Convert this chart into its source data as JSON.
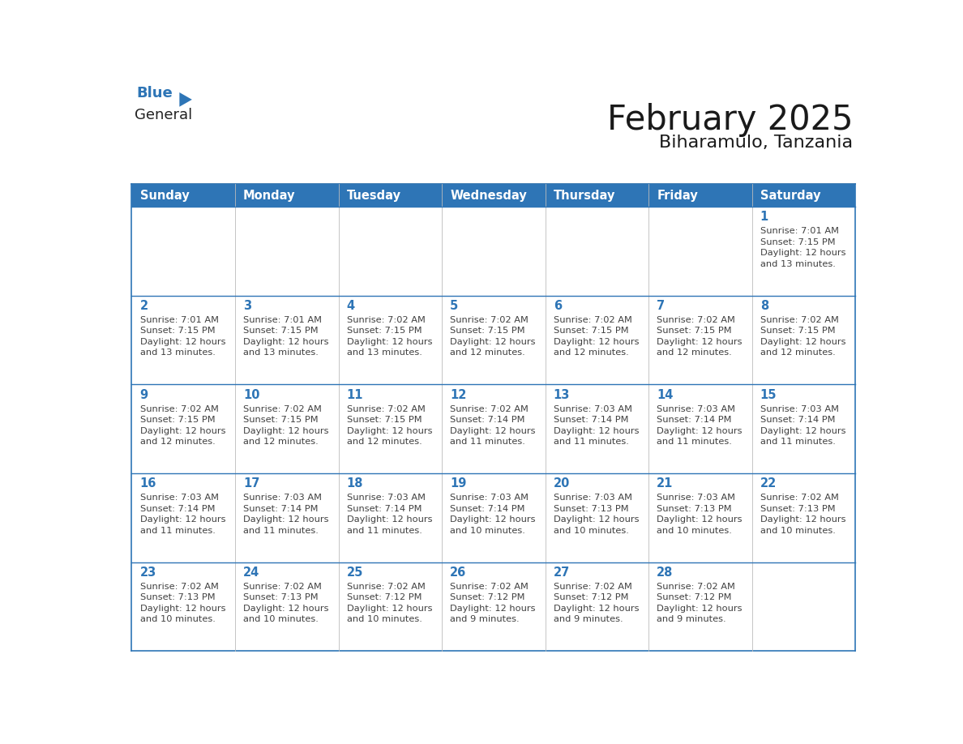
{
  "title": "February 2025",
  "subtitle": "Biharamulo, Tanzania",
  "header_bg": "#2E75B6",
  "header_text_color": "#FFFFFF",
  "border_color": "#2E75B6",
  "day_number_color": "#2E75B6",
  "cell_text_color": "#404040",
  "cell_bg": "#FFFFFF",
  "days_of_week": [
    "Sunday",
    "Monday",
    "Tuesday",
    "Wednesday",
    "Thursday",
    "Friday",
    "Saturday"
  ],
  "calendar_data": [
    [
      null,
      null,
      null,
      null,
      null,
      null,
      {
        "day": 1,
        "sunrise": "7:01 AM",
        "sunset": "7:15 PM",
        "daylight": "12 hours\nand 13 minutes."
      }
    ],
    [
      {
        "day": 2,
        "sunrise": "7:01 AM",
        "sunset": "7:15 PM",
        "daylight": "12 hours\nand 13 minutes."
      },
      {
        "day": 3,
        "sunrise": "7:01 AM",
        "sunset": "7:15 PM",
        "daylight": "12 hours\nand 13 minutes."
      },
      {
        "day": 4,
        "sunrise": "7:02 AM",
        "sunset": "7:15 PM",
        "daylight": "12 hours\nand 13 minutes."
      },
      {
        "day": 5,
        "sunrise": "7:02 AM",
        "sunset": "7:15 PM",
        "daylight": "12 hours\nand 12 minutes."
      },
      {
        "day": 6,
        "sunrise": "7:02 AM",
        "sunset": "7:15 PM",
        "daylight": "12 hours\nand 12 minutes."
      },
      {
        "day": 7,
        "sunrise": "7:02 AM",
        "sunset": "7:15 PM",
        "daylight": "12 hours\nand 12 minutes."
      },
      {
        "day": 8,
        "sunrise": "7:02 AM",
        "sunset": "7:15 PM",
        "daylight": "12 hours\nand 12 minutes."
      }
    ],
    [
      {
        "day": 9,
        "sunrise": "7:02 AM",
        "sunset": "7:15 PM",
        "daylight": "12 hours\nand 12 minutes."
      },
      {
        "day": 10,
        "sunrise": "7:02 AM",
        "sunset": "7:15 PM",
        "daylight": "12 hours\nand 12 minutes."
      },
      {
        "day": 11,
        "sunrise": "7:02 AM",
        "sunset": "7:15 PM",
        "daylight": "12 hours\nand 12 minutes."
      },
      {
        "day": 12,
        "sunrise": "7:02 AM",
        "sunset": "7:14 PM",
        "daylight": "12 hours\nand 11 minutes."
      },
      {
        "day": 13,
        "sunrise": "7:03 AM",
        "sunset": "7:14 PM",
        "daylight": "12 hours\nand 11 minutes."
      },
      {
        "day": 14,
        "sunrise": "7:03 AM",
        "sunset": "7:14 PM",
        "daylight": "12 hours\nand 11 minutes."
      },
      {
        "day": 15,
        "sunrise": "7:03 AM",
        "sunset": "7:14 PM",
        "daylight": "12 hours\nand 11 minutes."
      }
    ],
    [
      {
        "day": 16,
        "sunrise": "7:03 AM",
        "sunset": "7:14 PM",
        "daylight": "12 hours\nand 11 minutes."
      },
      {
        "day": 17,
        "sunrise": "7:03 AM",
        "sunset": "7:14 PM",
        "daylight": "12 hours\nand 11 minutes."
      },
      {
        "day": 18,
        "sunrise": "7:03 AM",
        "sunset": "7:14 PM",
        "daylight": "12 hours\nand 11 minutes."
      },
      {
        "day": 19,
        "sunrise": "7:03 AM",
        "sunset": "7:14 PM",
        "daylight": "12 hours\nand 10 minutes."
      },
      {
        "day": 20,
        "sunrise": "7:03 AM",
        "sunset": "7:13 PM",
        "daylight": "12 hours\nand 10 minutes."
      },
      {
        "day": 21,
        "sunrise": "7:03 AM",
        "sunset": "7:13 PM",
        "daylight": "12 hours\nand 10 minutes."
      },
      {
        "day": 22,
        "sunrise": "7:02 AM",
        "sunset": "7:13 PM",
        "daylight": "12 hours\nand 10 minutes."
      }
    ],
    [
      {
        "day": 23,
        "sunrise": "7:02 AM",
        "sunset": "7:13 PM",
        "daylight": "12 hours\nand 10 minutes."
      },
      {
        "day": 24,
        "sunrise": "7:02 AM",
        "sunset": "7:13 PM",
        "daylight": "12 hours\nand 10 minutes."
      },
      {
        "day": 25,
        "sunrise": "7:02 AM",
        "sunset": "7:12 PM",
        "daylight": "12 hours\nand 10 minutes."
      },
      {
        "day": 26,
        "sunrise": "7:02 AM",
        "sunset": "7:12 PM",
        "daylight": "12 hours\nand 9 minutes."
      },
      {
        "day": 27,
        "sunrise": "7:02 AM",
        "sunset": "7:12 PM",
        "daylight": "12 hours\nand 9 minutes."
      },
      {
        "day": 28,
        "sunrise": "7:02 AM",
        "sunset": "7:12 PM",
        "daylight": "12 hours\nand 9 minutes."
      },
      null
    ]
  ]
}
